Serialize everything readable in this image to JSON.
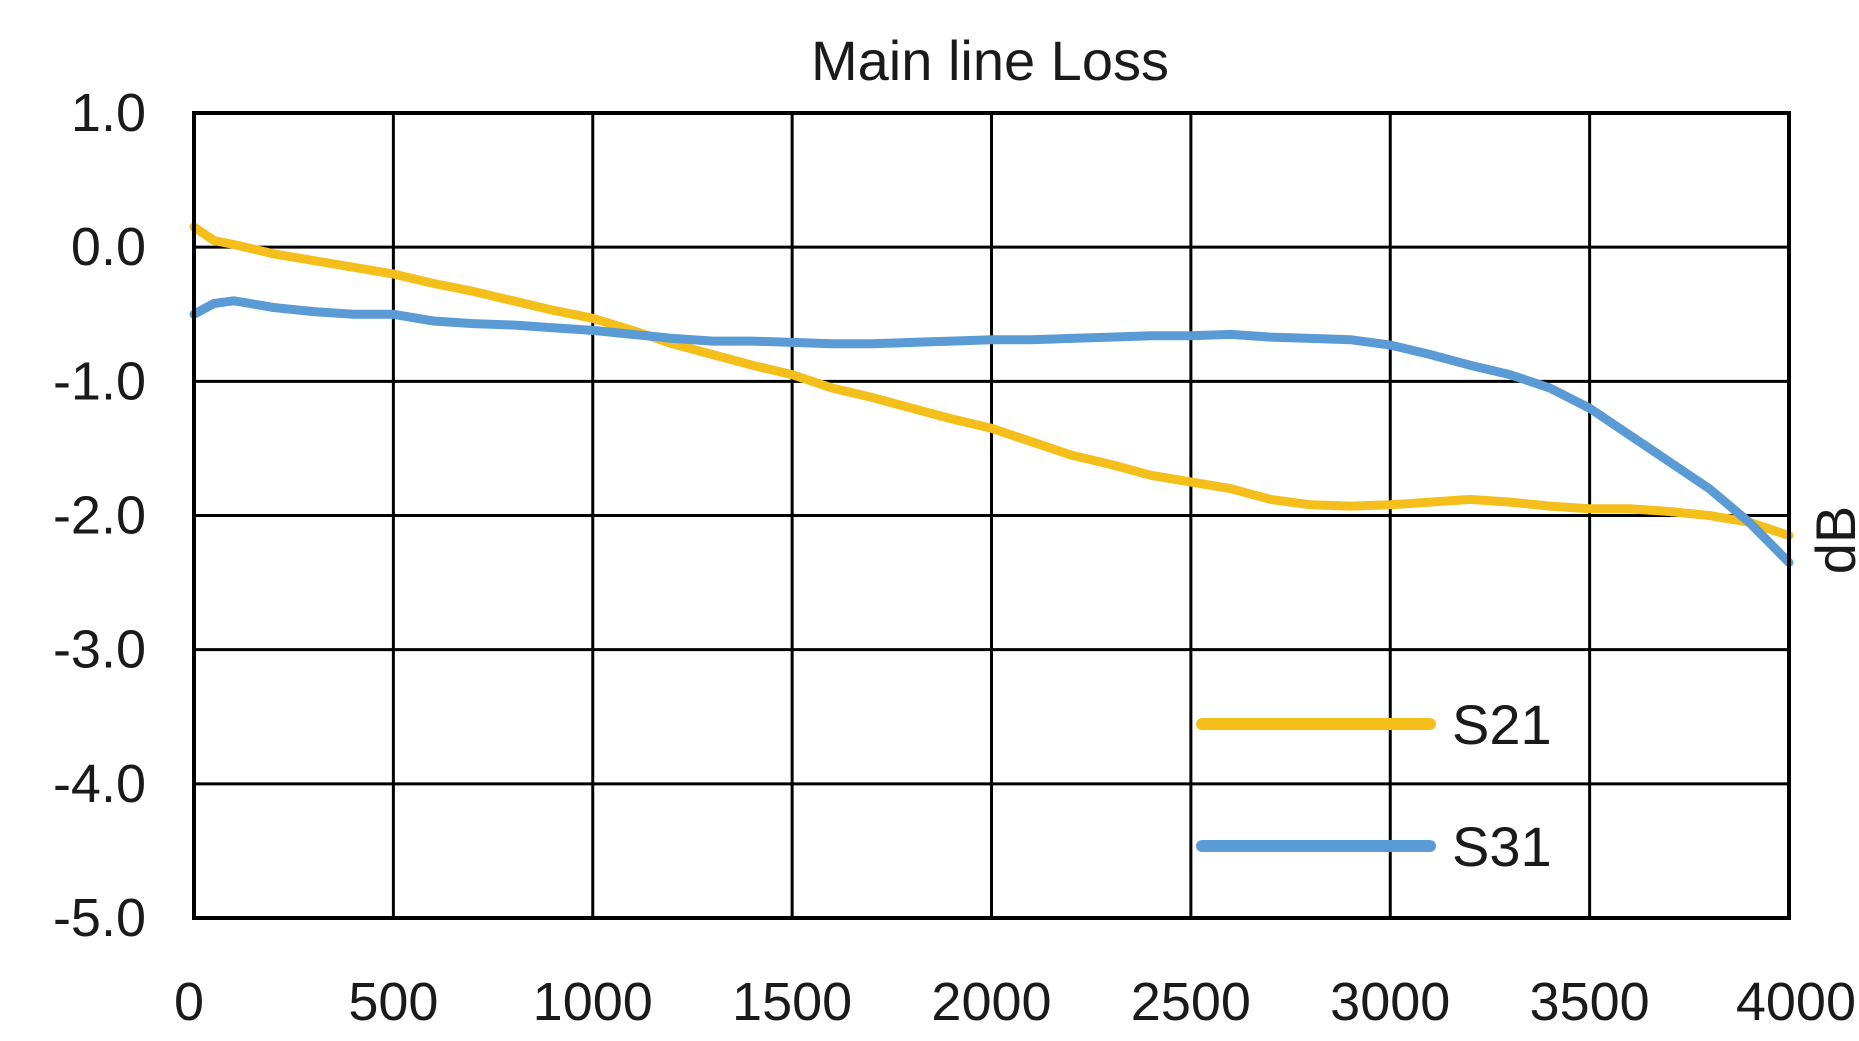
{
  "chart_data": {
    "type": "line",
    "title": "Main line Loss",
    "xlabel": "",
    "ylabel": "dB",
    "xlim": [
      0,
      4000
    ],
    "ylim": [
      -5.0,
      1.0
    ],
    "x_ticks": [
      0,
      500,
      1000,
      1500,
      2000,
      2500,
      3000,
      3500,
      4000
    ],
    "x_tick_labels": [
      "0",
      "500",
      "1000",
      "1500",
      "2000",
      "2500",
      "3000",
      "3500",
      "4000"
    ],
    "y_ticks": [
      1.0,
      0.0,
      -1.0,
      -2.0,
      -3.0,
      -4.0,
      -5.0
    ],
    "y_tick_labels": [
      "1.0",
      "0.0",
      "-1.0",
      "-2.0",
      "-3.0",
      "-4.0",
      "-5.0"
    ],
    "grid": true,
    "legend_position": "bottom-right",
    "series": [
      {
        "name": "S21",
        "color": "#F5BF1B",
        "x": [
          0,
          50,
          100,
          200,
          300,
          400,
          500,
          600,
          700,
          800,
          900,
          1000,
          1100,
          1200,
          1300,
          1400,
          1500,
          1600,
          1700,
          1800,
          1900,
          2000,
          2100,
          2200,
          2300,
          2400,
          2500,
          2600,
          2700,
          2800,
          2900,
          3000,
          3100,
          3200,
          3300,
          3400,
          3500,
          3600,
          3700,
          3800,
          3900,
          4000
        ],
        "y": [
          0.15,
          0.05,
          0.02,
          -0.05,
          -0.1,
          -0.15,
          -0.2,
          -0.27,
          -0.33,
          -0.4,
          -0.47,
          -0.53,
          -0.62,
          -0.72,
          -0.8,
          -0.88,
          -0.95,
          -1.05,
          -1.12,
          -1.2,
          -1.28,
          -1.35,
          -1.45,
          -1.55,
          -1.62,
          -1.7,
          -1.75,
          -1.8,
          -1.88,
          -1.92,
          -1.93,
          -1.92,
          -1.9,
          -1.88,
          -1.9,
          -1.93,
          -1.95,
          -1.95,
          -1.97,
          -2.0,
          -2.05,
          -2.15
        ]
      },
      {
        "name": "S31",
        "color": "#5B9BD5",
        "x": [
          0,
          50,
          100,
          200,
          300,
          400,
          500,
          600,
          700,
          800,
          900,
          1000,
          1100,
          1200,
          1300,
          1400,
          1500,
          1600,
          1700,
          1800,
          1900,
          2000,
          2100,
          2200,
          2300,
          2400,
          2500,
          2600,
          2700,
          2800,
          2900,
          3000,
          3100,
          3200,
          3300,
          3400,
          3500,
          3600,
          3700,
          3800,
          3900,
          4000
        ],
        "y": [
          -0.5,
          -0.42,
          -0.4,
          -0.45,
          -0.48,
          -0.5,
          -0.5,
          -0.55,
          -0.57,
          -0.58,
          -0.6,
          -0.62,
          -0.65,
          -0.68,
          -0.7,
          -0.7,
          -0.71,
          -0.72,
          -0.72,
          -0.71,
          -0.7,
          -0.69,
          -0.69,
          -0.68,
          -0.67,
          -0.66,
          -0.66,
          -0.65,
          -0.67,
          -0.68,
          -0.69,
          -0.73,
          -0.8,
          -0.88,
          -0.95,
          -1.05,
          -1.2,
          -1.4,
          -1.6,
          -1.8,
          -2.05,
          -2.35
        ]
      }
    ]
  }
}
